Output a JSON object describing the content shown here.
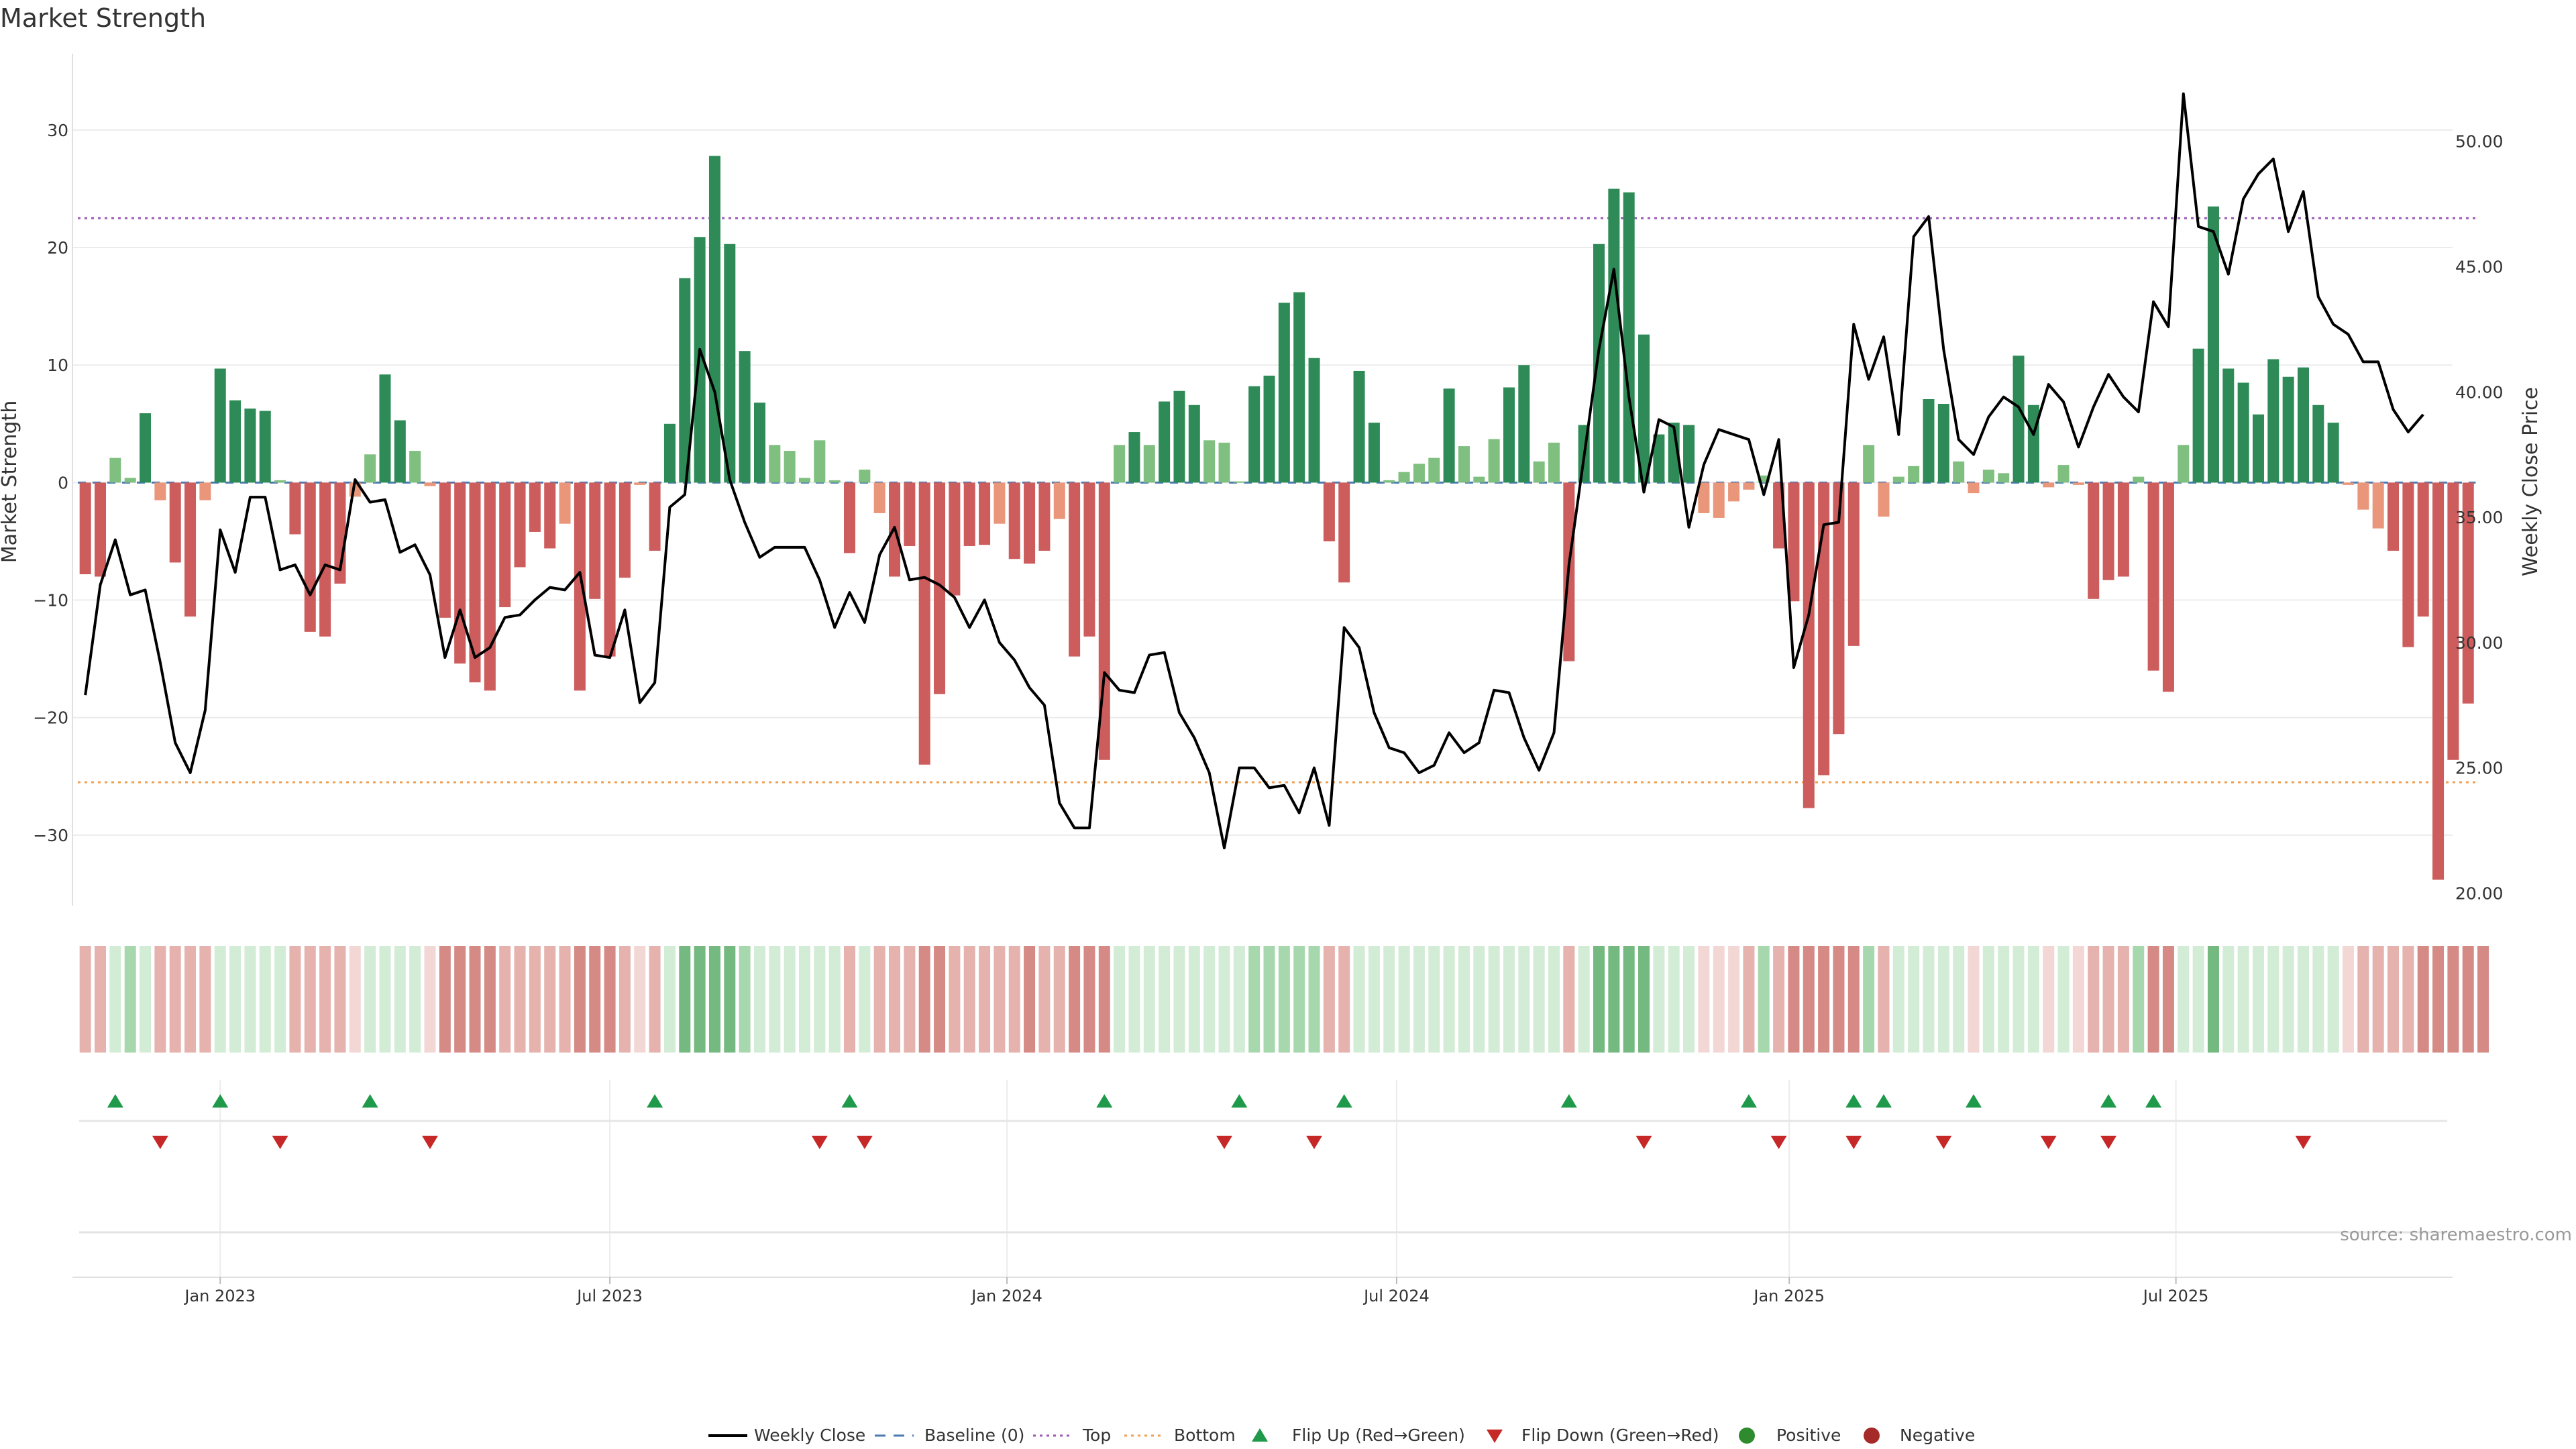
{
  "title": "Market Strength",
  "source": "source: sharemaestro.com",
  "chart_data": {
    "type": "bar+line",
    "title": "Market Strength",
    "ylabel_left": "Market Strength",
    "ylabel_right": "Weekly Close Price",
    "ylim_left": [
      -36,
      36.5
    ],
    "ylim_right": [
      19.5,
      53.5
    ],
    "y_ticks_left": [
      30,
      20,
      10,
      0,
      -10,
      -20,
      -30
    ],
    "y_tick_labels_left": [
      "30",
      "20",
      "10",
      "0",
      "−10",
      "−20",
      "−30"
    ],
    "y_ticks_right": [
      50,
      45,
      40,
      35,
      30,
      25,
      20
    ],
    "y_tick_labels_right": [
      "50.00",
      "45.00",
      "40.00",
      "35.00",
      "30.00",
      "25.00",
      "20.00"
    ],
    "x_ticks": [
      {
        "label": "Jan 2023",
        "index": 9
      },
      {
        "label": "Jul 2023",
        "index": 35
      },
      {
        "label": "Jan 2024",
        "index": 61.5
      },
      {
        "label": "Jul 2024",
        "index": 87.5
      },
      {
        "label": "Jan 2025",
        "index": 113.7
      },
      {
        "label": "Jul 2025",
        "index": 139.5
      }
    ],
    "top_level": 22.5,
    "bottom_level": -25.5,
    "strength": [
      -7.8,
      -8,
      2.1,
      0.4,
      5.9,
      -1.5,
      -6.8,
      -11.4,
      -1.5,
      9.7,
      7,
      6.3,
      6.1,
      0.2,
      -4.4,
      -12.7,
      -13.1,
      -8.6,
      -1.2,
      2.4,
      9.2,
      5.3,
      2.7,
      -0.3,
      -11.5,
      -15.4,
      -17,
      -17.7,
      -10.6,
      -7.2,
      -4.2,
      -5.6,
      -3.5,
      -17.7,
      -9.9,
      -14.8,
      -8.1,
      -0.2,
      -5.8,
      5,
      17.4,
      20.9,
      27.8,
      20.3,
      11.2,
      6.8,
      3.2,
      2.7,
      0.4,
      3.6,
      0.2,
      -6,
      1.1,
      -2.6,
      -8,
      -5.4,
      -24,
      -18,
      -9.6,
      -5.4,
      -5.3,
      -3.5,
      -6.5,
      -6.9,
      -5.8,
      -3.1,
      -14.8,
      -13.1,
      -23.6,
      3.2,
      4.3,
      3.2,
      6.9,
      7.8,
      6.6,
      3.6,
      3.4,
      0.1,
      8.2,
      9.1,
      15.3,
      16.2,
      10.6,
      -5,
      -8.5,
      9.5,
      5.1,
      0.2,
      0.9,
      1.6,
      2.1,
      8,
      3.1,
      0.5,
      3.7,
      8.1,
      10,
      1.8,
      3.4,
      -15.2,
      4.9,
      20.3,
      25,
      24.7,
      12.6,
      4.1,
      5.1,
      4.9,
      -2.6,
      -3,
      -1.6,
      -0.6,
      0.6,
      -5.6,
      -10.1,
      -27.7,
      -24.9,
      -21.4,
      -13.9,
      3.2,
      -2.9,
      0.5,
      1.4,
      7.1,
      6.7,
      1.8,
      -0.9,
      1.1,
      0.8,
      10.8,
      6.6,
      -0.4,
      1.5,
      -0.2,
      -9.9,
      -8.3,
      -8,
      0.5,
      -16,
      -17.8,
      3.2,
      11.4,
      23.5,
      9.7,
      8.5,
      5.8,
      10.5,
      9,
      9.8,
      6.6,
      5.1,
      -0.2,
      -2.3,
      -3.9,
      -5.8,
      -14,
      -11.4,
      -33.8,
      -23.6,
      -18.8
    ],
    "close": [
      27.9,
      32.3,
      34.1,
      31.9,
      32.1,
      29.2,
      26,
      24.8,
      27.3,
      34.5,
      32.8,
      35.8,
      35.8,
      32.9,
      33.1,
      31.9,
      33.1,
      32.9,
      36.5,
      35.6,
      35.7,
      33.6,
      33.9,
      32.7,
      29.4,
      31.3,
      29.4,
      29.8,
      31,
      31.1,
      31.7,
      32.2,
      32.1,
      32.8,
      29.5,
      29.4,
      31.3,
      27.6,
      28.4,
      35.4,
      35.9,
      41.7,
      40,
      36.5,
      34.8,
      33.4,
      33.8,
      33.8,
      33.8,
      32.5,
      30.6,
      32,
      30.8,
      33.5,
      34.6,
      32.5,
      32.6,
      32.3,
      31.8,
      30.6,
      31.7,
      30,
      29.3,
      28.2,
      27.5,
      23.6,
      22.6,
      22.6,
      28.8,
      28.1,
      28,
      29.5,
      29.6,
      27.2,
      26.2,
      24.8,
      21.8,
      25,
      25,
      24.2,
      24.3,
      23.2,
      25,
      22.7,
      30.6,
      29.8,
      27.2,
      25.8,
      25.6,
      24.8,
      25.1,
      26.4,
      25.6,
      26,
      28.1,
      28,
      26.2,
      24.9,
      26.4,
      33.1,
      37.4,
      41.7,
      44.9,
      39.8,
      36,
      38.9,
      38.6,
      34.6,
      37.1,
      38.5,
      38.3,
      38.1,
      35.9,
      38.1,
      29,
      31.1,
      34.7,
      34.8,
      42.7,
      40.5,
      42.2,
      38.3,
      46.2,
      47,
      41.7,
      38.1,
      37.5,
      39,
      39.8,
      39.4,
      38.3,
      40.3,
      39.6,
      37.8,
      39.4,
      40.7,
      39.8,
      39.2,
      43.6,
      42.6,
      51.9,
      46.6,
      46.4,
      44.7,
      47.7,
      48.7,
      49.3,
      46.4,
      48,
      43.8,
      42.7,
      42.3,
      41.2,
      41.2,
      39.3,
      38.4,
      39.1
    ],
    "band_intensity": [
      2,
      2,
      1,
      2,
      1,
      2,
      2,
      2,
      2,
      1,
      1,
      1,
      1,
      1,
      2,
      2,
      2,
      2,
      1,
      1,
      1,
      1,
      1,
      1,
      3,
      3,
      3,
      3,
      2,
      2,
      2,
      2,
      2,
      3,
      3,
      3,
      2,
      1,
      2,
      1,
      3,
      3,
      3,
      3,
      2,
      1,
      1,
      1,
      1,
      1,
      1,
      2,
      1,
      2,
      2,
      2,
      3,
      3,
      2,
      2,
      2,
      2,
      2,
      3,
      2,
      2,
      3,
      3,
      3,
      1,
      1,
      1,
      1,
      1,
      1,
      1,
      1,
      1,
      2,
      2,
      2,
      2,
      2,
      2,
      2,
      1,
      1,
      1,
      1,
      1,
      1,
      1,
      1,
      1,
      1,
      1,
      1,
      1,
      1,
      2,
      1,
      3,
      3,
      3,
      3,
      1,
      1,
      1,
      1,
      1,
      1,
      2,
      2,
      2,
      3,
      3,
      3,
      3,
      3,
      2,
      2,
      1,
      1,
      1,
      1,
      1,
      1,
      1,
      1,
      1,
      1,
      1,
      1,
      1,
      2,
      2,
      2,
      2,
      3,
      3,
      1,
      1,
      3,
      1,
      1,
      1,
      1,
      1,
      1,
      1,
      1,
      1,
      2,
      2,
      2,
      2,
      3,
      3,
      3,
      3,
      3
    ],
    "flip_up_index": [
      2,
      9,
      19,
      38,
      51,
      68,
      77,
      84,
      99,
      111,
      118,
      120,
      126,
      135,
      138
    ],
    "flip_down_index": [
      5,
      13,
      23,
      49,
      52,
      76,
      82,
      104,
      113,
      118,
      124,
      131,
      135,
      148
    ],
    "series_colors": {
      "strong_positive": "#2e8b57",
      "mild_positive": "#7fbf7f",
      "strong_negative": "#cd5c5c",
      "mild_negative": "#e9967a",
      "close_line": "#000000",
      "baseline": "#4a7ab0",
      "top": "#9b59b6",
      "bottom": "#f0a050",
      "flip_up": "#1f9a4a",
      "flip_down": "#c62828",
      "positive": "#2e8b2e",
      "negative": "#a52a2a"
    },
    "legend": [
      "Weekly Close",
      "Baseline (0)",
      "Top",
      "Bottom",
      "Flip Up (Red→Green)",
      "Flip Down (Green→Red)",
      "Positive",
      "Negative"
    ]
  }
}
